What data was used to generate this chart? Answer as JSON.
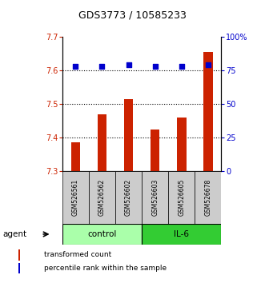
{
  "title": "GDS3773 / 10585233",
  "samples": [
    "GSM526561",
    "GSM526562",
    "GSM526602",
    "GSM526603",
    "GSM526605",
    "GSM526678"
  ],
  "bar_values": [
    7.385,
    7.47,
    7.515,
    7.425,
    7.46,
    7.655
  ],
  "percentile_values": [
    78,
    78,
    79,
    78,
    78,
    79
  ],
  "bar_bottom": 7.3,
  "ylim_left": [
    7.3,
    7.7
  ],
  "ylim_right": [
    0,
    100
  ],
  "yticks_left": [
    7.3,
    7.4,
    7.5,
    7.6,
    7.7
  ],
  "yticks_right": [
    0,
    25,
    50,
    75,
    100
  ],
  "ytick_labels_right": [
    "0",
    "25",
    "50",
    "75",
    "100%"
  ],
  "bar_color": "#cc2200",
  "dot_color": "#0000cc",
  "control_color": "#aaffaa",
  "il6_color": "#33cc33",
  "label_color_left": "#cc2200",
  "label_color_right": "#0000cc",
  "sample_box_color": "#cccccc",
  "agent_label": "agent",
  "control_label": "control",
  "il6_label": "IL-6",
  "legend_bar_label": "transformed count",
  "legend_dot_label": "percentile rank within the sample",
  "grid_yticks": [
    7.4,
    7.5,
    7.6
  ]
}
